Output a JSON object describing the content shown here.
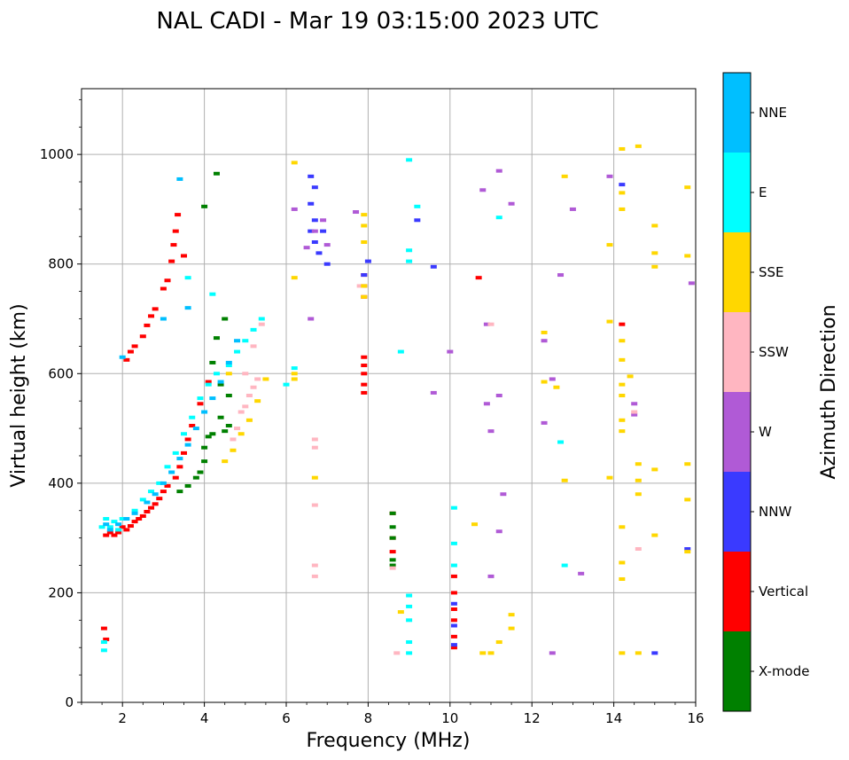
{
  "chart_data": {
    "type": "scatter",
    "title": "NAL CADI - Mar 19 03:15:00 2023 UTC",
    "xlabel": "Frequency (MHz)",
    "ylabel": "Virtual height (km)",
    "xlim": [
      1,
      16
    ],
    "ylim": [
      0,
      1120
    ],
    "xticks": [
      2,
      4,
      6,
      8,
      10,
      12,
      14,
      16
    ],
    "yticks": [
      0,
      200,
      400,
      600,
      800,
      1000
    ],
    "grid": true,
    "colorbar": {
      "title": "Azimuth Direction",
      "categories": [
        {
          "name": "X-mode",
          "color": "#008000"
        },
        {
          "name": "Vertical",
          "color": "#ff0000"
        },
        {
          "name": "NNW",
          "color": "#3a3aff"
        },
        {
          "name": "W",
          "color": "#b05ad6"
        },
        {
          "name": "SSW",
          "color": "#ffb6c1"
        },
        {
          "name": "SSE",
          "color": "#ffd700"
        },
        {
          "name": "E",
          "color": "#00ffff"
        },
        {
          "name": "NNE",
          "color": "#00bfff"
        }
      ]
    },
    "series": [
      {
        "name": "Vertical",
        "points": [
          [
            1.6,
            305
          ],
          [
            1.7,
            310
          ],
          [
            1.8,
            305
          ],
          [
            1.9,
            310
          ],
          [
            2.0,
            320
          ],
          [
            2.1,
            315
          ],
          [
            2.2,
            322
          ],
          [
            2.3,
            330
          ],
          [
            2.4,
            335
          ],
          [
            2.5,
            340
          ],
          [
            2.6,
            348
          ],
          [
            2.7,
            355
          ],
          [
            2.8,
            362
          ],
          [
            2.9,
            372
          ],
          [
            3.0,
            385
          ],
          [
            3.1,
            395
          ],
          [
            3.3,
            410
          ],
          [
            3.4,
            430
          ],
          [
            3.5,
            455
          ],
          [
            3.6,
            480
          ],
          [
            3.7,
            505
          ],
          [
            3.9,
            545
          ],
          [
            4.1,
            585
          ],
          [
            2.1,
            625
          ],
          [
            2.2,
            640
          ],
          [
            2.3,
            650
          ],
          [
            2.5,
            668
          ],
          [
            2.6,
            688
          ],
          [
            2.7,
            705
          ],
          [
            2.8,
            718
          ],
          [
            3.0,
            755
          ],
          [
            3.1,
            770
          ],
          [
            3.2,
            805
          ],
          [
            3.25,
            835
          ],
          [
            3.3,
            860
          ],
          [
            3.35,
            890
          ],
          [
            3.5,
            815
          ],
          [
            1.55,
            135
          ],
          [
            1.6,
            115
          ],
          [
            7.9,
            565
          ],
          [
            7.9,
            580
          ],
          [
            7.9,
            600
          ],
          [
            7.9,
            615
          ],
          [
            7.9,
            630
          ],
          [
            7.9,
            740
          ],
          [
            7.9,
            760
          ],
          [
            7.9,
            780
          ],
          [
            8.6,
            345
          ],
          [
            8.6,
            300
          ],
          [
            8.6,
            275
          ],
          [
            10.1,
            100
          ],
          [
            10.1,
            120
          ],
          [
            10.1,
            150
          ],
          [
            10.1,
            170
          ],
          [
            10.1,
            200
          ],
          [
            10.1,
            230
          ],
          [
            10.7,
            775
          ],
          [
            14.2,
            690
          ]
        ]
      },
      {
        "name": "X-mode",
        "points": [
          [
            3.4,
            385
          ],
          [
            3.6,
            395
          ],
          [
            3.8,
            410
          ],
          [
            3.9,
            420
          ],
          [
            4.0,
            440
          ],
          [
            4.0,
            465
          ],
          [
            4.1,
            485
          ],
          [
            4.2,
            490
          ],
          [
            4.5,
            495
          ],
          [
            4.6,
            505
          ],
          [
            4.4,
            520
          ],
          [
            4.6,
            560
          ],
          [
            4.4,
            580
          ],
          [
            4.2,
            620
          ],
          [
            4.3,
            665
          ],
          [
            4.5,
            700
          ],
          [
            4.0,
            905
          ],
          [
            4.3,
            965
          ],
          [
            8.6,
            345
          ],
          [
            8.6,
            320
          ],
          [
            8.6,
            300
          ],
          [
            8.6,
            260
          ],
          [
            8.6,
            250
          ]
        ]
      },
      {
        "name": "NNW",
        "points": [
          [
            6.6,
            960
          ],
          [
            6.7,
            940
          ],
          [
            6.6,
            910
          ],
          [
            6.7,
            880
          ],
          [
            6.6,
            860
          ],
          [
            6.7,
            840
          ],
          [
            6.8,
            820
          ],
          [
            6.9,
            860
          ],
          [
            7.0,
            800
          ],
          [
            7.9,
            780
          ],
          [
            8.0,
            805
          ],
          [
            10.1,
            105
          ],
          [
            10.1,
            140
          ],
          [
            10.1,
            180
          ],
          [
            14.2,
            945
          ],
          [
            15.0,
            90
          ],
          [
            9.2,
            880
          ],
          [
            9.6,
            795
          ],
          [
            15.8,
            280
          ]
        ]
      },
      {
        "name": "W",
        "points": [
          [
            6.2,
            900
          ],
          [
            6.5,
            830
          ],
          [
            6.7,
            860
          ],
          [
            6.9,
            880
          ],
          [
            7.0,
            835
          ],
          [
            7.7,
            895
          ],
          [
            6.6,
            700
          ],
          [
            10.8,
            935
          ],
          [
            11.2,
            970
          ],
          [
            11.5,
            910
          ],
          [
            10.9,
            690
          ],
          [
            11.2,
            560
          ],
          [
            11.0,
            495
          ],
          [
            11.3,
            380
          ],
          [
            11.2,
            312
          ],
          [
            11.0,
            230
          ],
          [
            12.5,
            590
          ],
          [
            12.7,
            780
          ],
          [
            13.0,
            900
          ],
          [
            13.9,
            960
          ],
          [
            14.5,
            545
          ],
          [
            14.5,
            525
          ],
          [
            12.3,
            660
          ],
          [
            12.3,
            510
          ],
          [
            12.5,
            90
          ],
          [
            13.2,
            235
          ],
          [
            15.9,
            765
          ],
          [
            9.6,
            565
          ],
          [
            10.0,
            640
          ],
          [
            10.9,
            545
          ]
        ]
      },
      {
        "name": "SSW",
        "points": [
          [
            4.7,
            480
          ],
          [
            4.8,
            500
          ],
          [
            4.9,
            530
          ],
          [
            5.0,
            540
          ],
          [
            5.1,
            560
          ],
          [
            5.2,
            575
          ],
          [
            5.3,
            590
          ],
          [
            5.0,
            600
          ],
          [
            5.2,
            650
          ],
          [
            5.4,
            690
          ],
          [
            6.7,
            480
          ],
          [
            6.7,
            465
          ],
          [
            6.7,
            360
          ],
          [
            6.7,
            250
          ],
          [
            6.7,
            230
          ],
          [
            7.8,
            760
          ],
          [
            8.7,
            90
          ],
          [
            8.6,
            245
          ],
          [
            11.0,
            690
          ],
          [
            14.6,
            280
          ],
          [
            14.5,
            530
          ]
        ]
      },
      {
        "name": "SSE",
        "points": [
          [
            4.5,
            440
          ],
          [
            4.7,
            460
          ],
          [
            4.9,
            490
          ],
          [
            5.1,
            515
          ],
          [
            5.3,
            550
          ],
          [
            5.5,
            590
          ],
          [
            4.6,
            600
          ],
          [
            6.2,
            600
          ],
          [
            6.2,
            590
          ],
          [
            6.2,
            985
          ],
          [
            6.2,
            775
          ],
          [
            6.7,
            410
          ],
          [
            7.9,
            890
          ],
          [
            7.9,
            870
          ],
          [
            7.9,
            840
          ],
          [
            7.9,
            760
          ],
          [
            7.9,
            740
          ],
          [
            8.8,
            165
          ],
          [
            10.6,
            325
          ],
          [
            10.8,
            90
          ],
          [
            11.0,
            90
          ],
          [
            11.2,
            110
          ],
          [
            11.5,
            160
          ],
          [
            11.5,
            135
          ],
          [
            12.3,
            675
          ],
          [
            12.3,
            585
          ],
          [
            12.6,
            575
          ],
          [
            12.8,
            405
          ],
          [
            12.8,
            960
          ],
          [
            13.9,
            835
          ],
          [
            13.9,
            695
          ],
          [
            14.2,
            1010
          ],
          [
            14.2,
            930
          ],
          [
            14.2,
            900
          ],
          [
            14.2,
            660
          ],
          [
            14.2,
            625
          ],
          [
            14.2,
            580
          ],
          [
            14.2,
            560
          ],
          [
            14.2,
            515
          ],
          [
            14.2,
            495
          ],
          [
            14.2,
            320
          ],
          [
            14.2,
            255
          ],
          [
            14.2,
            225
          ],
          [
            14.2,
            90
          ],
          [
            14.4,
            595
          ],
          [
            14.6,
            1015
          ],
          [
            14.6,
            435
          ],
          [
            14.6,
            405
          ],
          [
            14.6,
            380
          ],
          [
            14.6,
            90
          ],
          [
            15.0,
            870
          ],
          [
            15.0,
            820
          ],
          [
            15.0,
            795
          ],
          [
            15.0,
            425
          ],
          [
            15.0,
            305
          ],
          [
            15.8,
            940
          ],
          [
            15.8,
            815
          ],
          [
            15.8,
            435
          ],
          [
            15.8,
            370
          ],
          [
            15.8,
            275
          ],
          [
            13.9,
            410
          ]
        ]
      },
      {
        "name": "E",
        "points": [
          [
            1.5,
            320
          ],
          [
            1.6,
            335
          ],
          [
            1.7,
            320
          ],
          [
            1.8,
            330
          ],
          [
            1.9,
            315
          ],
          [
            2.0,
            335
          ],
          [
            2.3,
            350
          ],
          [
            2.5,
            370
          ],
          [
            2.7,
            385
          ],
          [
            2.9,
            400
          ],
          [
            3.1,
            430
          ],
          [
            3.3,
            455
          ],
          [
            3.5,
            490
          ],
          [
            3.7,
            520
          ],
          [
            3.9,
            555
          ],
          [
            4.1,
            580
          ],
          [
            4.3,
            600
          ],
          [
            4.6,
            615
          ],
          [
            4.8,
            640
          ],
          [
            5.0,
            660
          ],
          [
            5.2,
            680
          ],
          [
            5.4,
            700
          ],
          [
            6.0,
            580
          ],
          [
            6.2,
            610
          ],
          [
            8.8,
            640
          ],
          [
            9.0,
            990
          ],
          [
            9.0,
            825
          ],
          [
            9.0,
            805
          ],
          [
            9.0,
            195
          ],
          [
            9.0,
            175
          ],
          [
            9.0,
            150
          ],
          [
            9.0,
            110
          ],
          [
            9.0,
            90
          ],
          [
            9.2,
            905
          ],
          [
            10.1,
            355
          ],
          [
            10.1,
            290
          ],
          [
            10.1,
            250
          ],
          [
            11.2,
            885
          ],
          [
            12.7,
            475
          ],
          [
            12.8,
            250
          ],
          [
            1.55,
            95
          ],
          [
            1.55,
            110
          ],
          [
            3.6,
            775
          ],
          [
            4.2,
            745
          ]
        ]
      },
      {
        "name": "NNE",
        "points": [
          [
            1.6,
            325
          ],
          [
            1.7,
            315
          ],
          [
            1.9,
            325
          ],
          [
            2.1,
            335
          ],
          [
            2.3,
            345
          ],
          [
            2.6,
            365
          ],
          [
            2.8,
            380
          ],
          [
            3.0,
            400
          ],
          [
            3.2,
            420
          ],
          [
            3.4,
            445
          ],
          [
            3.6,
            470
          ],
          [
            3.8,
            500
          ],
          [
            4.0,
            530
          ],
          [
            4.2,
            555
          ],
          [
            4.4,
            585
          ],
          [
            4.6,
            620
          ],
          [
            2.0,
            630
          ],
          [
            3.0,
            700
          ],
          [
            3.4,
            955
          ],
          [
            3.6,
            720
          ],
          [
            4.8,
            660
          ]
        ]
      }
    ]
  }
}
